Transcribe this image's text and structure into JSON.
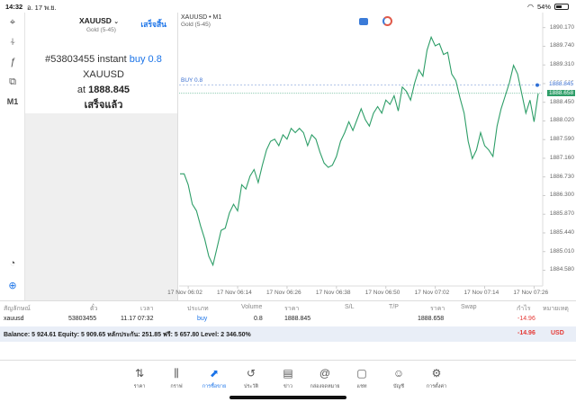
{
  "status": {
    "time": "14:32",
    "date": "อ. 17 พ.ย.",
    "battery": "54%",
    "battery_level": 0.54
  },
  "left_toolbar": {
    "items": [
      {
        "name": "crosshair-icon",
        "glyph": "⌖"
      },
      {
        "name": "indicators-icon",
        "glyph": "⍭"
      },
      {
        "name": "function-icon",
        "glyph": "ƒ"
      },
      {
        "name": "objects-icon",
        "glyph": "⧉"
      },
      {
        "name": "timeframe-label",
        "label": "M1"
      }
    ],
    "bottom": [
      {
        "name": "chart-search-icon",
        "glyph": "◔"
      },
      {
        "name": "trade-window-icon",
        "glyph": "⊕"
      }
    ]
  },
  "order": {
    "symbol": "XAUUSD",
    "symbol_desc": "Gold (5-45)",
    "done_label": "เสร็จสิ้น",
    "order_id": "#53803455",
    "instant": "instant",
    "buy_text": "buy 0.8",
    "symbol_text": "XAUUSD",
    "at_text": "at",
    "price": "1888.845",
    "status": "เสร็จแล้ว"
  },
  "chart": {
    "title": "XAUUSD • M1",
    "subtitle": "Gold (5-45)",
    "buy_label": "BUY 0.8",
    "y_ticks": [
      "1890.170",
      "1889.740",
      "1889.310",
      "1888.880",
      "1888.450",
      "1888.020",
      "1887.590",
      "1887.160",
      "1886.730",
      "1886.300",
      "1885.870",
      "1885.440",
      "1885.010",
      "1884.580"
    ],
    "bid_label": "1888.658",
    "buy_level_label": "1888.845",
    "x_ticks": [
      "17 Nov 06:02",
      "17 Nov 06:14",
      "17 Nov 06:26",
      "17 Nov 06:38",
      "17 Nov 06:50",
      "17 Nov 07:02",
      "17 Nov 07:14",
      "17 Nov 07:26"
    ]
  },
  "chart_data": {
    "type": "line",
    "title": "XAUUSD • M1",
    "xlabel": "",
    "ylabel": "",
    "ylim": [
      1884.3,
      1890.35
    ],
    "x": [
      "06:00",
      "06:01",
      "06:02",
      "06:03",
      "06:04",
      "06:05",
      "06:06",
      "06:07",
      "06:08",
      "06:09",
      "06:10",
      "06:11",
      "06:12",
      "06:13",
      "06:14",
      "06:15",
      "06:16",
      "06:17",
      "06:18",
      "06:19",
      "06:20",
      "06:21",
      "06:22",
      "06:23",
      "06:24",
      "06:25",
      "06:26",
      "06:27",
      "06:28",
      "06:29",
      "06:30",
      "06:31",
      "06:32",
      "06:33",
      "06:34",
      "06:35",
      "06:36",
      "06:37",
      "06:38",
      "06:39",
      "06:40",
      "06:41",
      "06:42",
      "06:43",
      "06:44",
      "06:45",
      "06:46",
      "06:47",
      "06:48",
      "06:49",
      "06:50",
      "06:51",
      "06:52",
      "06:53",
      "06:54",
      "06:55",
      "06:56",
      "06:57",
      "06:58",
      "06:59",
      "07:00",
      "07:01",
      "07:02",
      "07:03",
      "07:04",
      "07:05",
      "07:06",
      "07:07",
      "07:08",
      "07:09",
      "07:10",
      "07:11",
      "07:12",
      "07:13",
      "07:14",
      "07:15",
      "07:16",
      "07:17",
      "07:18",
      "07:19",
      "07:20",
      "07:21",
      "07:22",
      "07:23",
      "07:24",
      "07:25",
      "07:26",
      "07:27"
    ],
    "series": [
      {
        "values": [
          1886.8,
          1886.8,
          1886.55,
          1886.1,
          1885.95,
          1885.6,
          1885.3,
          1884.9,
          1884.7,
          1885.1,
          1885.5,
          1885.55,
          1885.9,
          1886.1,
          1885.95,
          1886.55,
          1886.45,
          1886.75,
          1886.9,
          1886.6,
          1887.0,
          1887.35,
          1887.55,
          1887.6,
          1887.45,
          1887.7,
          1887.6,
          1887.85,
          1887.75,
          1887.85,
          1887.75,
          1887.45,
          1887.7,
          1887.6,
          1887.3,
          1887.05,
          1886.95,
          1887.0,
          1887.2,
          1887.55,
          1887.75,
          1888.0,
          1887.8,
          1888.05,
          1888.3,
          1888.05,
          1887.9,
          1888.2,
          1888.35,
          1888.2,
          1888.5,
          1888.4,
          1888.6,
          1888.25,
          1888.8,
          1888.7,
          1888.5,
          1888.9,
          1889.2,
          1889.05,
          1889.65,
          1889.95,
          1889.75,
          1889.8,
          1889.55,
          1889.6,
          1889.1,
          1888.95,
          1888.55,
          1888.2,
          1887.55,
          1887.15,
          1887.35,
          1887.75,
          1887.45,
          1887.35,
          1887.2,
          1887.9,
          1888.3,
          1888.6,
          1888.9,
          1889.3,
          1889.1,
          1888.65,
          1888.2,
          1888.5,
          1888.0,
          1888.65
        ]
      }
    ]
  },
  "table": {
    "headers": [
      "สัญลักษณ์",
      "ตั๋ว",
      "เวลา",
      "ประเภท",
      "Volume",
      "ราคา",
      "S/L",
      "T/P",
      "ราคา",
      "Swap",
      "กำไร",
      "หมายเหตุ"
    ],
    "row": {
      "symbol": "xauusd",
      "ticket": "53803455",
      "time": "11.17 07:32",
      "type": "buy",
      "volume": "0.8",
      "price": "1888.845",
      "sl": "",
      "tp": "",
      "current": "1888.658",
      "swap": "",
      "profit": "-14.96",
      "comment": ""
    },
    "balance_text": "Balance: 5 924.61 Equity: 5 909.65 หลักประกัน: 251.85 ฟรี: 5 657.80 Level: 2 346.50%",
    "balance_profit": "-14.96",
    "currency": "USD"
  },
  "tabs": [
    {
      "name": "tab-quotes",
      "label": "ราคา",
      "glyph": "⇅"
    },
    {
      "name": "tab-chart",
      "label": "กราฟ",
      "glyph": "⫼"
    },
    {
      "name": "tab-trade",
      "label": "การซื้อขาย",
      "glyph": "⬈",
      "active": true
    },
    {
      "name": "tab-history",
      "label": "ประวัติ",
      "glyph": "↺"
    },
    {
      "name": "tab-news",
      "label": "ข่าว",
      "glyph": "▤"
    },
    {
      "name": "tab-mailbox",
      "label": "กล่องจดหมาย",
      "glyph": "@"
    },
    {
      "name": "tab-chat",
      "label": "แชท",
      "glyph": "▢"
    },
    {
      "name": "tab-accounts",
      "label": "บัญชี",
      "glyph": "☺"
    },
    {
      "name": "tab-settings",
      "label": "การตั้งค่า",
      "glyph": "⚙"
    }
  ],
  "colors": {
    "accent": "#1a73e8",
    "line": "#2e9e68",
    "loss": "#e53935",
    "balance_bg": "#e9eef7"
  }
}
